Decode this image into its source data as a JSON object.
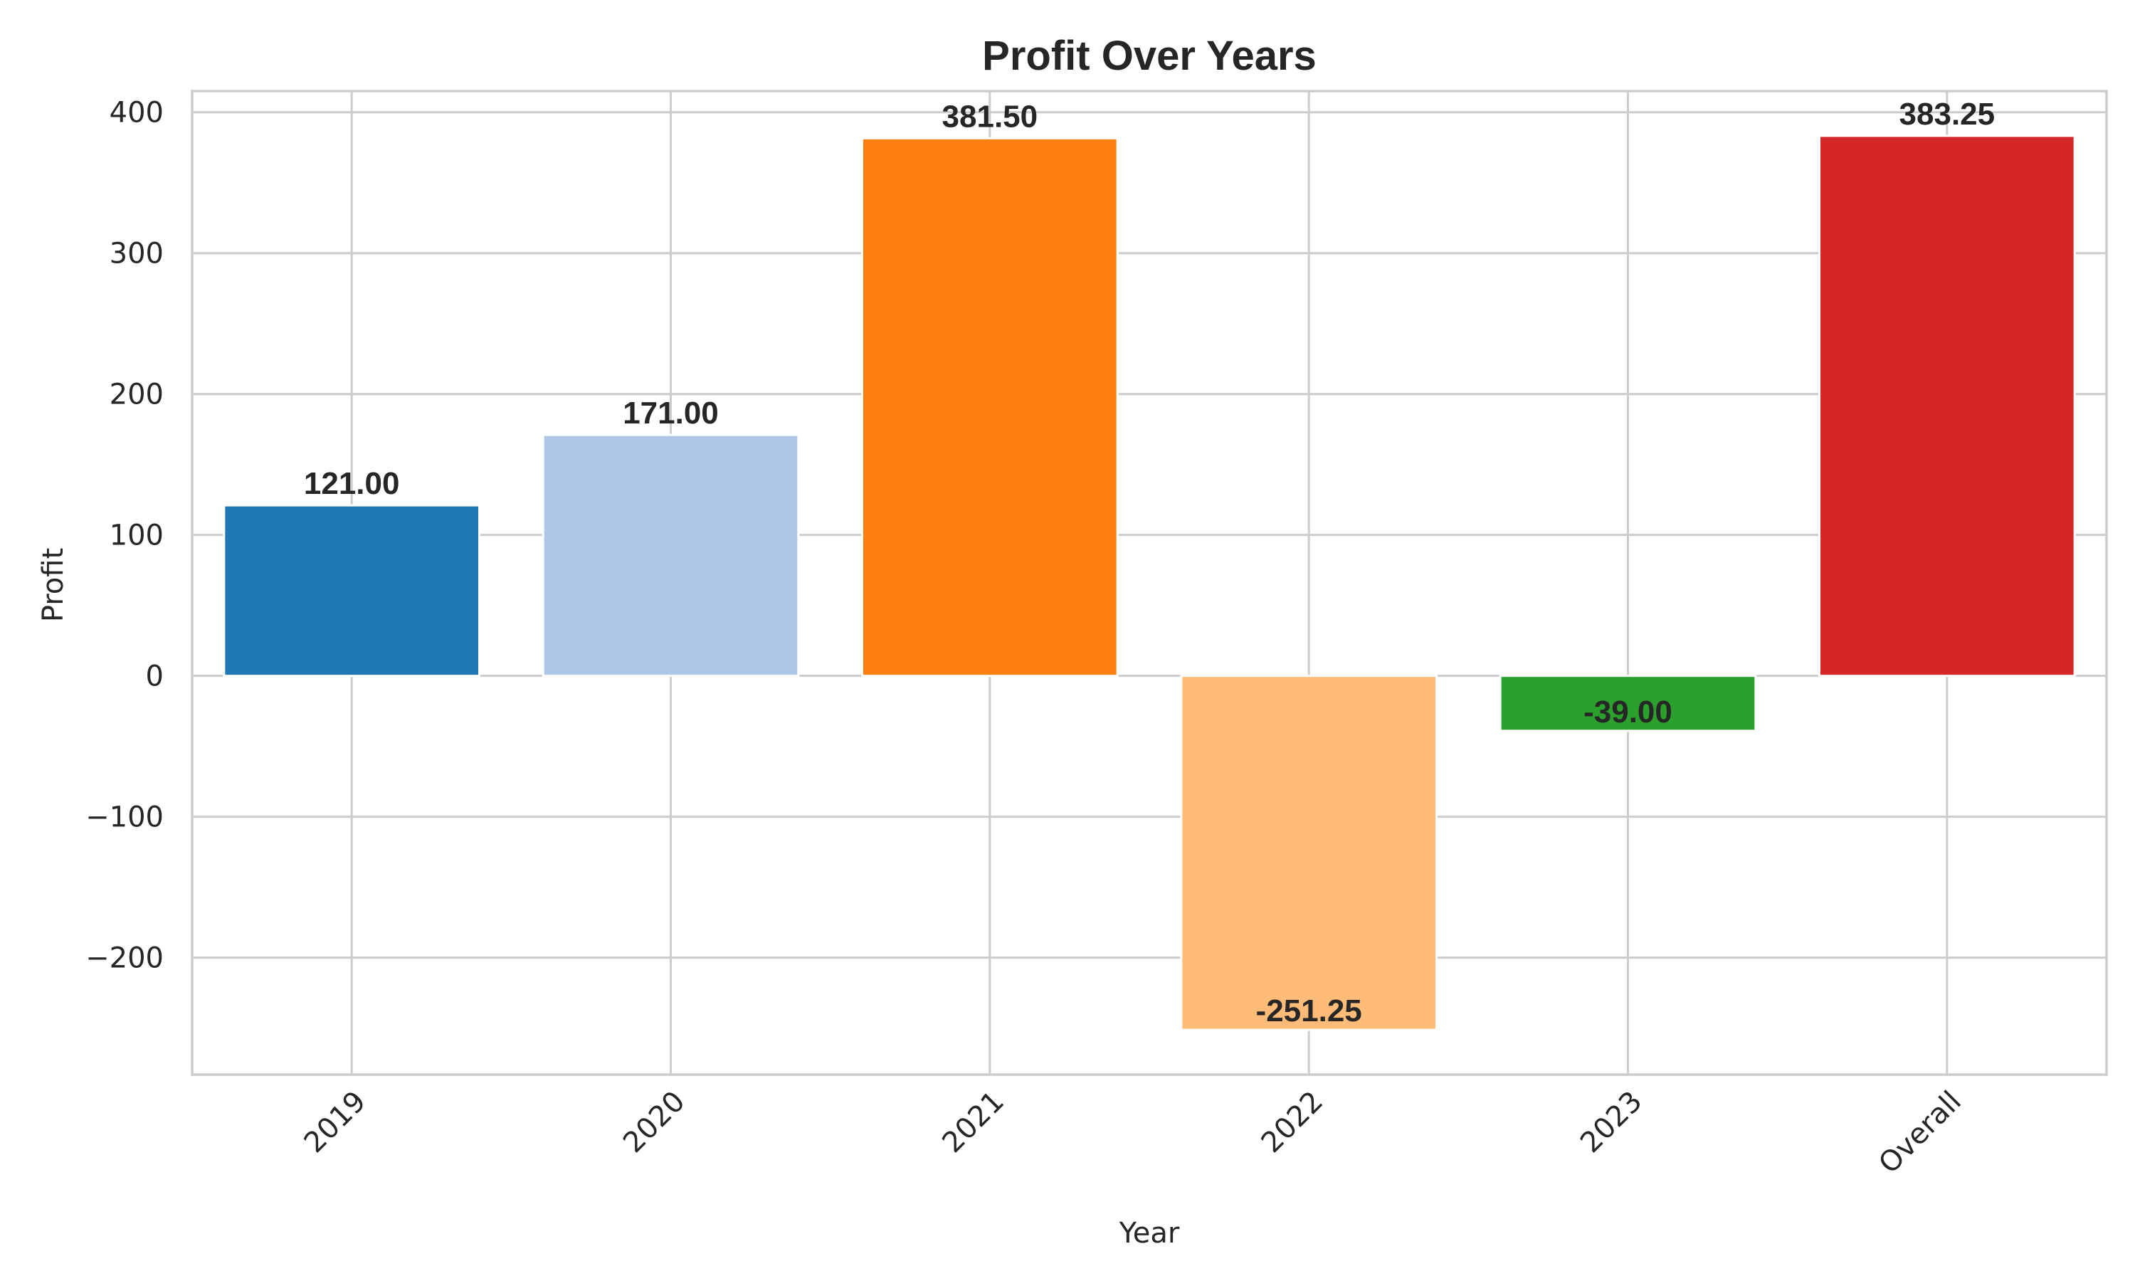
{
  "chart_data": {
    "type": "bar",
    "title": "Profit Over Years",
    "xlabel": "Year",
    "ylabel": "Profit",
    "categories": [
      "2019",
      "2020",
      "2021",
      "2022",
      "2023",
      "Overall"
    ],
    "values": [
      121.0,
      171.0,
      381.5,
      -251.25,
      -39.0,
      383.25
    ],
    "value_labels": [
      "121.00",
      "171.00",
      "381.50",
      "-251.25",
      "-39.00",
      "383.25"
    ],
    "colors": [
      "#1f77b4",
      "#aec7e8",
      "#ff7f0e",
      "#ffbb78",
      "#2ca02c",
      "#d62728"
    ],
    "ylim": [
      -283,
      415
    ],
    "yticks": [
      -200,
      -100,
      0,
      100,
      200,
      300,
      400
    ],
    "ytick_labels": [
      "−200",
      "−100",
      "0",
      "100",
      "200",
      "300",
      "400"
    ],
    "grid": true,
    "legend": "none"
  }
}
